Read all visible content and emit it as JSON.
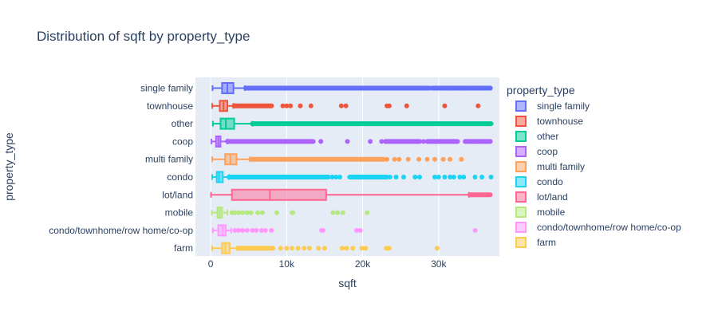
{
  "chart_data": {
    "type": "box",
    "orientation": "horizontal",
    "title": "Distribution of sqft by property_type",
    "xlabel": "sqft",
    "ylabel": "property_type",
    "xlim": [
      -2000,
      38000
    ],
    "x_ticks": [
      0,
      10000,
      20000,
      30000
    ],
    "x_tick_labels": [
      "0",
      "10k",
      "20k",
      "30k"
    ],
    "grid": true,
    "legend": {
      "title": "property_type",
      "placement": "right"
    },
    "series": [
      {
        "name": "single family",
        "color": "#636efa",
        "min": 250,
        "q1": 1500,
        "median": 2200,
        "q3": 3000,
        "max": 4500,
        "outliers": [
          4600,
          28800,
          29200,
          30000,
          31000,
          32500,
          33500,
          35000,
          36200,
          36800
        ],
        "dense_outliers": [
          [
            4600,
            28800
          ],
          [
            29200,
            36800
          ]
        ]
      },
      {
        "name": "townhouse",
        "color": "#ef553b",
        "min": 200,
        "q1": 1200,
        "median": 1700,
        "q3": 2200,
        "max": 3000,
        "outliers": [
          3100,
          5000,
          7500,
          8000,
          9500,
          10000,
          10500,
          11800,
          13200,
          17200,
          17800,
          23200,
          23500,
          25800,
          30800,
          35200
        ],
        "dense_outliers": [
          [
            3100,
            8000
          ]
        ]
      },
      {
        "name": "other",
        "color": "#00cc96",
        "min": 300,
        "q1": 1300,
        "median": 2000,
        "q3": 3100,
        "max": 5500,
        "outliers": [],
        "dense_outliers": [
          [
            5500,
            36900
          ]
        ]
      },
      {
        "name": "coop",
        "color": "#ab63fa",
        "min": 100,
        "q1": 700,
        "median": 1000,
        "q3": 1300,
        "max": 2200,
        "outliers": [
          14500,
          18000,
          21000,
          22500,
          25200,
          26000,
          28000,
          30000,
          31500,
          33500,
          34500,
          35000,
          36000
        ],
        "dense_outliers": [
          [
            2200,
            13500
          ],
          [
            23000,
            27500
          ],
          [
            28500,
            32500
          ],
          [
            33500,
            36800
          ]
        ]
      },
      {
        "name": "multi family",
        "color": "#ffa15a",
        "min": 200,
        "q1": 1900,
        "median": 2600,
        "q3": 3400,
        "max": 5200,
        "outliers": [
          23200,
          24200,
          24800,
          26000,
          27400,
          28500,
          29500,
          30600,
          31500,
          33000
        ],
        "dense_outliers": [
          [
            5300,
            22800
          ]
        ]
      },
      {
        "name": "condo",
        "color": "#19d3f3",
        "min": 200,
        "q1": 800,
        "median": 1100,
        "q3": 1600,
        "max": 2400,
        "outliers": [
          16000,
          16500,
          17000,
          18300,
          19000,
          19700,
          20600,
          22000,
          22500,
          23600,
          24400,
          25400,
          26900,
          27500,
          29500,
          30000,
          30800,
          31500,
          32000,
          32800,
          33300,
          34800,
          35700,
          36900
        ],
        "dense_outliers": [
          [
            2400,
            15500
          ],
          [
            18500,
            23200
          ]
        ]
      },
      {
        "name": "lot/land",
        "color": "#ff6692",
        "min": 50,
        "q1": 2800,
        "median": 7800,
        "q3": 15200,
        "max": 34000,
        "outliers": [],
        "dense_outliers": [
          [
            34100,
            36800
          ]
        ]
      },
      {
        "name": "mobile",
        "color": "#b6e880",
        "min": 150,
        "q1": 900,
        "median": 1200,
        "q3": 1500,
        "max": 2200,
        "outliers": [
          2800,
          3200,
          3700,
          4200,
          4800,
          5300,
          6200,
          6800,
          8700,
          10700,
          10800,
          16100,
          16700,
          17400,
          20600
        ],
        "dense_outliers": []
      },
      {
        "name": "condo/townhome/row home/co-op",
        "color": "#ff97ff",
        "min": 300,
        "q1": 1000,
        "median": 1600,
        "q3": 2000,
        "max": 2700,
        "outliers": [
          3200,
          3700,
          4200,
          4800,
          5500,
          6000,
          6700,
          7200,
          8000,
          14600,
          14800,
          19200,
          19700,
          34800
        ],
        "dense_outliers": []
      },
      {
        "name": "farm",
        "color": "#fecb52",
        "min": 200,
        "q1": 1500,
        "median": 1900,
        "q3": 2500,
        "max": 3500,
        "outliers": [
          9200,
          10000,
          10700,
          11500,
          12300,
          13000,
          14200,
          15000,
          17300,
          17900,
          18700,
          19900,
          20400,
          23100,
          23300,
          23500,
          29800
        ],
        "dense_outliers": [
          [
            3600,
            8200
          ]
        ]
      }
    ]
  }
}
